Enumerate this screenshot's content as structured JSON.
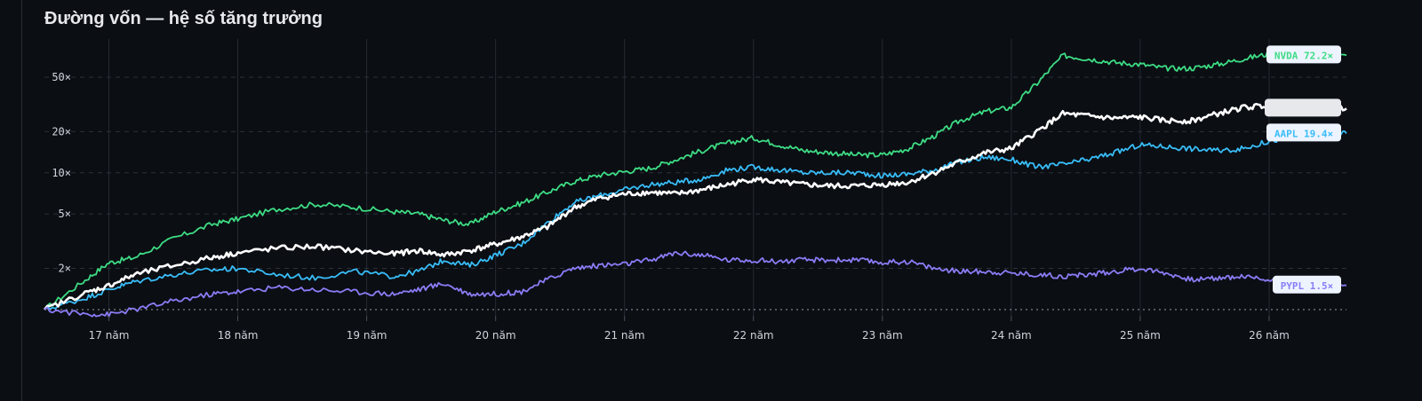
{
  "chart_data": {
    "type": "line",
    "title": "Đường vốn — hệ số tăng trưởng",
    "xlabel": "",
    "ylabel": "",
    "y_scale": "log",
    "ylim": [
      0.9,
      95
    ],
    "xlim": [
      16.5,
      26.6
    ],
    "y_ticks": [
      {
        "value": 50,
        "label": "50×"
      },
      {
        "value": 20,
        "label": "20×"
      },
      {
        "value": 10,
        "label": "10×"
      },
      {
        "value": 5,
        "label": "5×"
      },
      {
        "value": 2,
        "label": "2×"
      }
    ],
    "x_ticks": [
      {
        "value": 17,
        "label": "17 năm"
      },
      {
        "value": 18,
        "label": "18 năm"
      },
      {
        "value": 19,
        "label": "19 năm"
      },
      {
        "value": 20,
        "label": "20 năm"
      },
      {
        "value": 21,
        "label": "21 năm"
      },
      {
        "value": 22,
        "label": "22 năm"
      },
      {
        "value": 23,
        "label": "23 năm"
      },
      {
        "value": 24,
        "label": "24 năm"
      },
      {
        "value": 25,
        "label": "25 năm"
      },
      {
        "value": 26,
        "label": "26 năm"
      }
    ],
    "baseline": 1,
    "grid": true,
    "series": [
      {
        "name": "NVDA",
        "end_label": "NVDA 72.2×",
        "color": "#3ddc84",
        "x": [
          16.5,
          16.8,
          17.0,
          17.2,
          17.5,
          17.8,
          18.0,
          18.3,
          18.6,
          18.9,
          19.2,
          19.4,
          19.6,
          19.8,
          20.0,
          20.2,
          20.4,
          20.6,
          20.8,
          21.0,
          21.2,
          21.4,
          21.6,
          21.8,
          22.0,
          22.2,
          22.4,
          22.6,
          22.8,
          23.0,
          23.2,
          23.4,
          23.6,
          23.8,
          24.0,
          24.2,
          24.4,
          24.6,
          24.8,
          25.0,
          25.2,
          25.4,
          25.6,
          25.8,
          26.0,
          26.2,
          26.4,
          26.6
        ],
        "y": [
          1.0,
          1.6,
          2.2,
          2.4,
          3.3,
          4.2,
          4.6,
          5.4,
          5.9,
          5.6,
          5.2,
          5.0,
          4.5,
          4.2,
          5.2,
          6.0,
          7.2,
          8.6,
          9.6,
          10.2,
          10.8,
          12.5,
          14.5,
          16.5,
          18.0,
          16.0,
          14.5,
          14.0,
          13.5,
          13.5,
          15.0,
          18.5,
          24.0,
          28.0,
          30.0,
          45.0,
          72.0,
          68.0,
          64.0,
          62.0,
          58.0,
          58.0,
          62.0,
          68.0,
          74.0,
          72.0,
          70.0,
          72.2
        ]
      },
      {
        "name": "AAPL",
        "end_label": "AAPL 19.4×",
        "color": "#38bdf8",
        "x": [
          16.5,
          16.8,
          17.0,
          17.2,
          17.5,
          17.8,
          18.0,
          18.3,
          18.6,
          18.9,
          19.2,
          19.4,
          19.6,
          19.8,
          20.0,
          20.2,
          20.4,
          20.6,
          20.8,
          21.0,
          21.2,
          21.4,
          21.6,
          21.8,
          22.0,
          22.2,
          22.4,
          22.6,
          22.8,
          23.0,
          23.2,
          23.4,
          23.6,
          23.8,
          24.0,
          24.2,
          24.4,
          24.6,
          24.8,
          25.0,
          25.2,
          25.4,
          25.6,
          25.8,
          26.0,
          26.2,
          26.4,
          26.6
        ],
        "y": [
          1.0,
          1.2,
          1.4,
          1.6,
          1.8,
          1.95,
          2.0,
          1.8,
          1.7,
          1.9,
          1.75,
          1.9,
          2.3,
          2.1,
          2.5,
          3.0,
          4.3,
          6.0,
          6.8,
          7.5,
          8.2,
          8.5,
          9.0,
          10.5,
          11.0,
          10.5,
          10.0,
          10.0,
          10.0,
          9.5,
          9.8,
          10.5,
          12.0,
          13.0,
          12.5,
          11.0,
          11.5,
          12.5,
          14.0,
          16.0,
          15.5,
          15.0,
          14.5,
          15.0,
          17.0,
          18.5,
          19.0,
          19.4
        ]
      },
      {
        "name": "",
        "end_label": "",
        "color": "#ffffff",
        "x": [
          16.5,
          16.8,
          17.0,
          17.2,
          17.5,
          17.8,
          18.0,
          18.3,
          18.6,
          18.9,
          19.2,
          19.4,
          19.6,
          19.8,
          20.0,
          20.2,
          20.4,
          20.6,
          20.8,
          21.0,
          21.2,
          21.4,
          21.6,
          21.8,
          22.0,
          22.2,
          22.4,
          22.6,
          22.8,
          23.0,
          23.2,
          23.4,
          23.6,
          23.8,
          24.0,
          24.2,
          24.4,
          24.6,
          24.8,
          25.0,
          25.2,
          25.4,
          25.6,
          25.8,
          26.0,
          26.2,
          26.4,
          26.6
        ],
        "y": [
          1.0,
          1.3,
          1.5,
          1.8,
          2.1,
          2.4,
          2.6,
          2.8,
          2.9,
          2.7,
          2.55,
          2.7,
          2.5,
          2.7,
          3.0,
          3.4,
          4.0,
          5.5,
          6.5,
          7.0,
          7.2,
          7.0,
          7.5,
          8.2,
          9.0,
          8.5,
          8.2,
          8.0,
          8.0,
          8.2,
          8.5,
          10.0,
          12.0,
          14.0,
          15.0,
          20.0,
          27.0,
          26.0,
          25.0,
          25.5,
          24.0,
          24.0,
          27.0,
          30.0,
          31.0,
          30.0,
          29.5,
          29.5
        ]
      },
      {
        "name": "PYPL",
        "end_label": "PYPL 1.5×",
        "color": "#8b7cf6",
        "x": [
          16.5,
          16.8,
          17.0,
          17.2,
          17.5,
          17.8,
          18.0,
          18.3,
          18.6,
          18.9,
          19.2,
          19.4,
          19.6,
          19.8,
          20.0,
          20.2,
          20.4,
          20.6,
          20.8,
          21.0,
          21.2,
          21.4,
          21.6,
          21.8,
          22.0,
          22.2,
          22.4,
          22.6,
          22.8,
          23.0,
          23.2,
          23.4,
          23.6,
          23.8,
          24.0,
          24.2,
          24.4,
          24.6,
          24.8,
          25.0,
          25.2,
          25.4,
          25.6,
          25.8,
          26.0,
          26.2,
          26.4,
          26.6
        ],
        "y": [
          1.0,
          0.93,
          0.92,
          1.0,
          1.15,
          1.3,
          1.35,
          1.45,
          1.4,
          1.35,
          1.3,
          1.4,
          1.55,
          1.3,
          1.3,
          1.35,
          1.65,
          2.0,
          2.1,
          2.15,
          2.3,
          2.6,
          2.5,
          2.3,
          2.3,
          2.25,
          2.3,
          2.3,
          2.3,
          2.2,
          2.25,
          2.0,
          1.9,
          1.9,
          1.85,
          1.8,
          1.75,
          1.8,
          1.9,
          2.0,
          1.85,
          1.65,
          1.7,
          1.75,
          1.65,
          1.6,
          1.55,
          1.5
        ]
      }
    ]
  }
}
